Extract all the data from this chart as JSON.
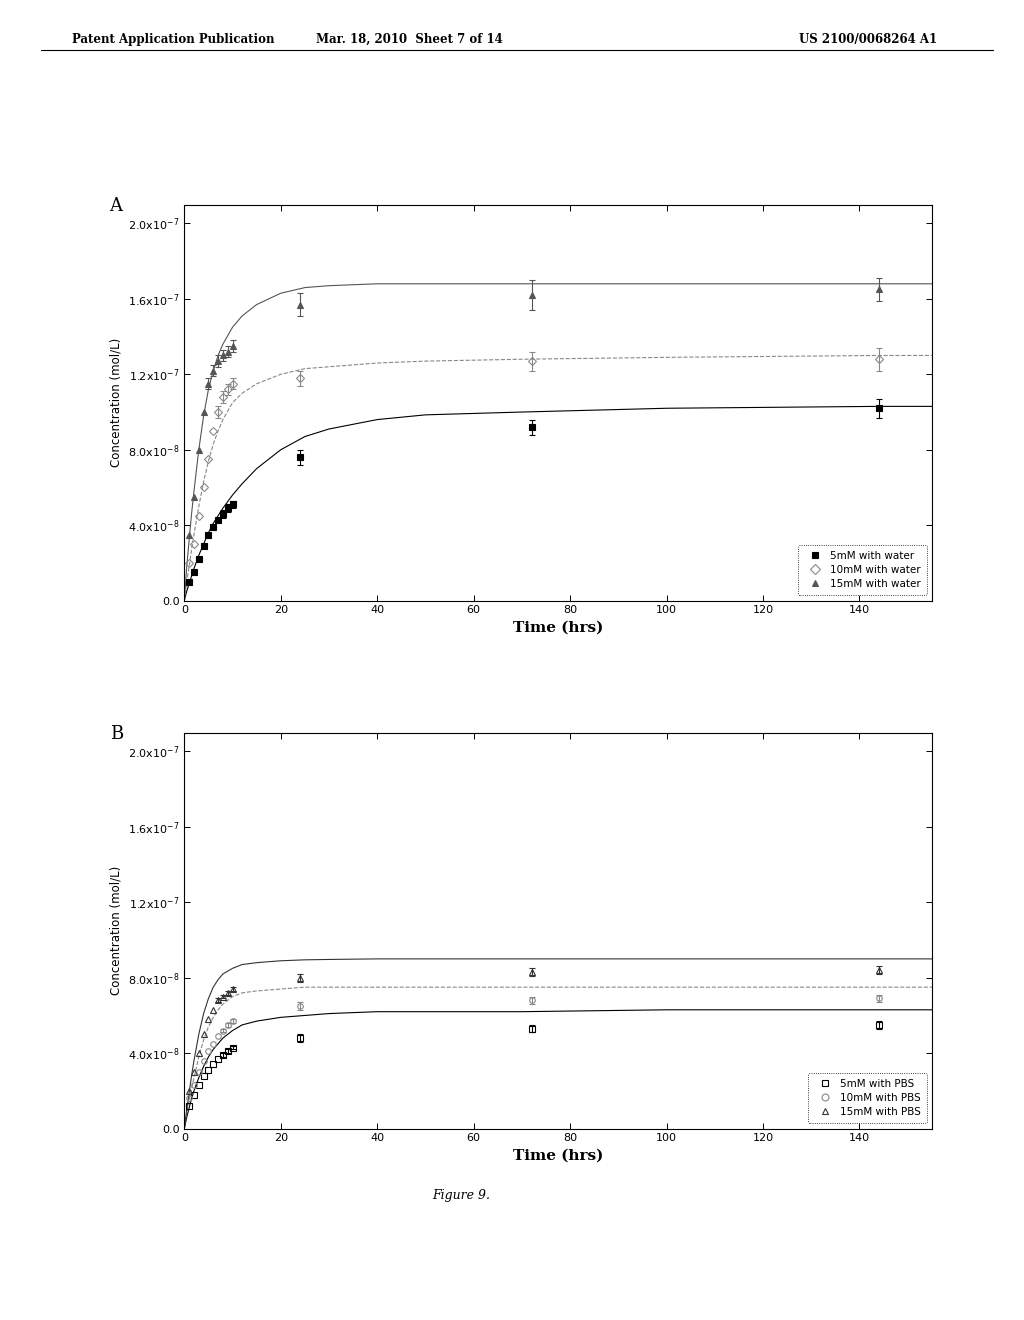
{
  "header_left": "Patent Application Publication",
  "header_mid": "Mar. 18, 2010  Sheet 7 of 14",
  "header_right": "US 2100/0068264 A1",
  "figure_caption": "Figure 9.",
  "panel_A": {
    "label": "A",
    "xlabel": "Time (hrs)",
    "ylabel": "Concentration (mol/L)",
    "xlim": [
      0,
      155
    ],
    "ylim": [
      0.0,
      2.1e-07
    ],
    "xticks": [
      0,
      20,
      40,
      60,
      80,
      100,
      120,
      140
    ],
    "yticks": [
      0.0,
      4e-08,
      8e-08,
      1.2e-07,
      1.6e-07,
      2e-07
    ],
    "series": [
      {
        "label": "5mM with water",
        "marker": "s",
        "filled": true,
        "color": "#000000",
        "line_style": "solid",
        "x_data": [
          1,
          2,
          3,
          4,
          5,
          6,
          7,
          8,
          9,
          10,
          24,
          72,
          144
        ],
        "y_data": [
          1e-08,
          1.5e-08,
          2.2e-08,
          2.9e-08,
          3.5e-08,
          3.9e-08,
          4.3e-08,
          4.6e-08,
          4.9e-08,
          5.1e-08,
          7.6e-08,
          9.2e-08,
          1.02e-07
        ],
        "y_err": [
          0,
          0,
          0,
          0,
          0,
          0,
          0,
          2e-09,
          2e-09,
          2e-09,
          4e-09,
          4e-09,
          5e-09
        ],
        "fit_x": [
          0,
          0.5,
          1,
          1.5,
          2,
          3,
          4,
          5,
          6,
          7,
          8,
          10,
          12,
          15,
          20,
          25,
          30,
          40,
          50,
          70,
          100,
          144,
          160
        ],
        "fit_y": [
          0,
          5e-09,
          9e-09,
          1.3e-08,
          1.7e-08,
          2.4e-08,
          3e-08,
          3.6e-08,
          4.1e-08,
          4.5e-08,
          4.9e-08,
          5.6e-08,
          6.2e-08,
          7e-08,
          8e-08,
          8.7e-08,
          9.1e-08,
          9.6e-08,
          9.85e-08,
          1e-07,
          1.02e-07,
          1.03e-07,
          1.03e-07
        ]
      },
      {
        "label": "10mM with water",
        "marker": "D",
        "filled": false,
        "color": "#888888",
        "line_style": "dashed",
        "x_data": [
          1,
          2,
          3,
          4,
          5,
          6,
          7,
          8,
          9,
          10,
          24,
          72,
          144
        ],
        "y_data": [
          2e-08,
          3e-08,
          4.5e-08,
          6e-08,
          7.5e-08,
          9e-08,
          1e-07,
          1.08e-07,
          1.12e-07,
          1.15e-07,
          1.18e-07,
          1.27e-07,
          1.28e-07
        ],
        "y_err": [
          0,
          0,
          0,
          0,
          0,
          0,
          3e-09,
          3e-09,
          3e-09,
          3e-09,
          4e-09,
          5e-09,
          6e-09
        ],
        "fit_x": [
          0,
          0.5,
          1,
          1.5,
          2,
          3,
          4,
          5,
          6,
          7,
          8,
          10,
          12,
          15,
          20,
          25,
          30,
          40,
          50,
          70,
          100,
          144,
          160
        ],
        "fit_y": [
          0,
          1e-08,
          1.8e-08,
          2.7e-08,
          3.5e-08,
          5e-08,
          6.3e-08,
          7.4e-08,
          8.3e-08,
          9e-08,
          9.6e-08,
          1.05e-07,
          1.1e-07,
          1.15e-07,
          1.2e-07,
          1.23e-07,
          1.24e-07,
          1.26e-07,
          1.27e-07,
          1.28e-07,
          1.29e-07,
          1.3e-07,
          1.3e-07
        ]
      },
      {
        "label": "15mM with water",
        "marker": "^",
        "filled": true,
        "color": "#555555",
        "line_style": "solid",
        "x_data": [
          1,
          2,
          3,
          4,
          5,
          6,
          7,
          8,
          9,
          10,
          24,
          72,
          144
        ],
        "y_data": [
          3.5e-08,
          5.5e-08,
          8e-08,
          1e-07,
          1.15e-07,
          1.22e-07,
          1.27e-07,
          1.3e-07,
          1.32e-07,
          1.35e-07,
          1.57e-07,
          1.62e-07,
          1.65e-07
        ],
        "y_err": [
          0,
          0,
          0,
          0,
          3e-09,
          3e-09,
          3e-09,
          3e-09,
          3e-09,
          3e-09,
          6e-09,
          8e-09,
          6e-09
        ],
        "fit_x": [
          0,
          0.5,
          1,
          1.5,
          2,
          3,
          4,
          5,
          6,
          7,
          8,
          10,
          12,
          15,
          20,
          25,
          30,
          40,
          50,
          70,
          100,
          144,
          160
        ],
        "fit_y": [
          0,
          1.8e-08,
          3.2e-08,
          4.6e-08,
          5.8e-08,
          8e-08,
          9.8e-08,
          1.12e-07,
          1.22e-07,
          1.3e-07,
          1.36e-07,
          1.45e-07,
          1.51e-07,
          1.57e-07,
          1.63e-07,
          1.66e-07,
          1.67e-07,
          1.68e-07,
          1.68e-07,
          1.68e-07,
          1.68e-07,
          1.68e-07,
          1.68e-07
        ]
      }
    ]
  },
  "panel_B": {
    "label": "B",
    "xlabel": "Time (hrs)",
    "ylabel": "Concentration (mol/L)",
    "xlim": [
      0,
      155
    ],
    "ylim": [
      0.0,
      2.1e-07
    ],
    "xticks": [
      0,
      20,
      40,
      60,
      80,
      100,
      120,
      140
    ],
    "yticks": [
      0.0,
      4e-08,
      8e-08,
      1.2e-07,
      1.6e-07,
      2e-07
    ],
    "series": [
      {
        "label": "5mM with PBS",
        "marker": "s",
        "filled": false,
        "color": "#000000",
        "line_style": "solid",
        "x_data": [
          1,
          2,
          3,
          4,
          5,
          6,
          7,
          8,
          9,
          10,
          24,
          72,
          144
        ],
        "y_data": [
          1.2e-08,
          1.8e-08,
          2.3e-08,
          2.8e-08,
          3.1e-08,
          3.4e-08,
          3.7e-08,
          3.9e-08,
          4.1e-08,
          4.3e-08,
          4.8e-08,
          5.3e-08,
          5.5e-08
        ],
        "y_err": [
          0,
          0,
          0,
          0,
          0,
          0,
          0,
          1e-09,
          1e-09,
          1e-09,
          2e-09,
          2e-09,
          2e-09
        ],
        "fit_x": [
          0,
          0.5,
          1,
          1.5,
          2,
          3,
          4,
          5,
          6,
          7,
          8,
          10,
          12,
          15,
          20,
          25,
          30,
          40,
          50,
          70,
          100,
          144,
          160
        ],
        "fit_y": [
          0,
          6e-09,
          1.1e-08,
          1.6e-08,
          2e-08,
          2.7e-08,
          3.3e-08,
          3.8e-08,
          4.2e-08,
          4.5e-08,
          4.8e-08,
          5.2e-08,
          5.5e-08,
          5.7e-08,
          5.9e-08,
          6e-08,
          6.1e-08,
          6.2e-08,
          6.2e-08,
          6.2e-08,
          6.3e-08,
          6.3e-08,
          6.3e-08
        ]
      },
      {
        "label": "10mM with PBS",
        "marker": "o",
        "filled": false,
        "color": "#888888",
        "line_style": "dashed",
        "x_data": [
          1,
          2,
          3,
          4,
          5,
          6,
          7,
          8,
          9,
          10,
          24,
          72,
          144
        ],
        "y_data": [
          1.6e-08,
          2.3e-08,
          3e-08,
          3.6e-08,
          4.1e-08,
          4.5e-08,
          4.9e-08,
          5.2e-08,
          5.5e-08,
          5.7e-08,
          6.5e-08,
          6.8e-08,
          6.9e-08
        ],
        "y_err": [
          0,
          0,
          0,
          0,
          0,
          0,
          0,
          1e-09,
          1e-09,
          1e-09,
          2e-09,
          2e-09,
          2e-09
        ],
        "fit_x": [
          0,
          0.5,
          1,
          1.5,
          2,
          3,
          4,
          5,
          6,
          7,
          8,
          10,
          12,
          15,
          20,
          25,
          30,
          40,
          50,
          70,
          100,
          144,
          160
        ],
        "fit_y": [
          0,
          8e-09,
          1.5e-08,
          2.1e-08,
          2.7e-08,
          3.8e-08,
          4.7e-08,
          5.4e-08,
          5.9e-08,
          6.3e-08,
          6.6e-08,
          7e-08,
          7.2e-08,
          7.3e-08,
          7.4e-08,
          7.5e-08,
          7.5e-08,
          7.5e-08,
          7.5e-08,
          7.5e-08,
          7.5e-08,
          7.5e-08,
          7.5e-08
        ]
      },
      {
        "label": "15mM with PBS",
        "marker": "^",
        "filled": false,
        "color": "#333333",
        "line_style": "solid",
        "x_data": [
          1,
          2,
          3,
          4,
          5,
          6,
          7,
          8,
          9,
          10,
          24,
          72,
          144
        ],
        "y_data": [
          2e-08,
          3e-08,
          4e-08,
          5e-08,
          5.8e-08,
          6.3e-08,
          6.8e-08,
          7e-08,
          7.2e-08,
          7.4e-08,
          8e-08,
          8.3e-08,
          8.4e-08
        ],
        "y_err": [
          0,
          0,
          0,
          0,
          0,
          0,
          1e-09,
          1e-09,
          1e-09,
          1e-09,
          2e-09,
          2e-09,
          2e-09
        ],
        "fit_x": [
          0,
          0.5,
          1,
          1.5,
          2,
          3,
          4,
          5,
          6,
          7,
          8,
          10,
          12,
          15,
          20,
          25,
          30,
          40,
          50,
          70,
          100,
          144,
          160
        ],
        "fit_y": [
          0,
          1e-08,
          1.9e-08,
          2.8e-08,
          3.6e-08,
          5e-08,
          6.1e-08,
          6.9e-08,
          7.5e-08,
          7.9e-08,
          8.2e-08,
          8.5e-08,
          8.7e-08,
          8.8e-08,
          8.9e-08,
          8.95e-08,
          8.97e-08,
          9e-08,
          9e-08,
          9e-08,
          9e-08,
          9e-08,
          9e-08
        ]
      }
    ]
  }
}
